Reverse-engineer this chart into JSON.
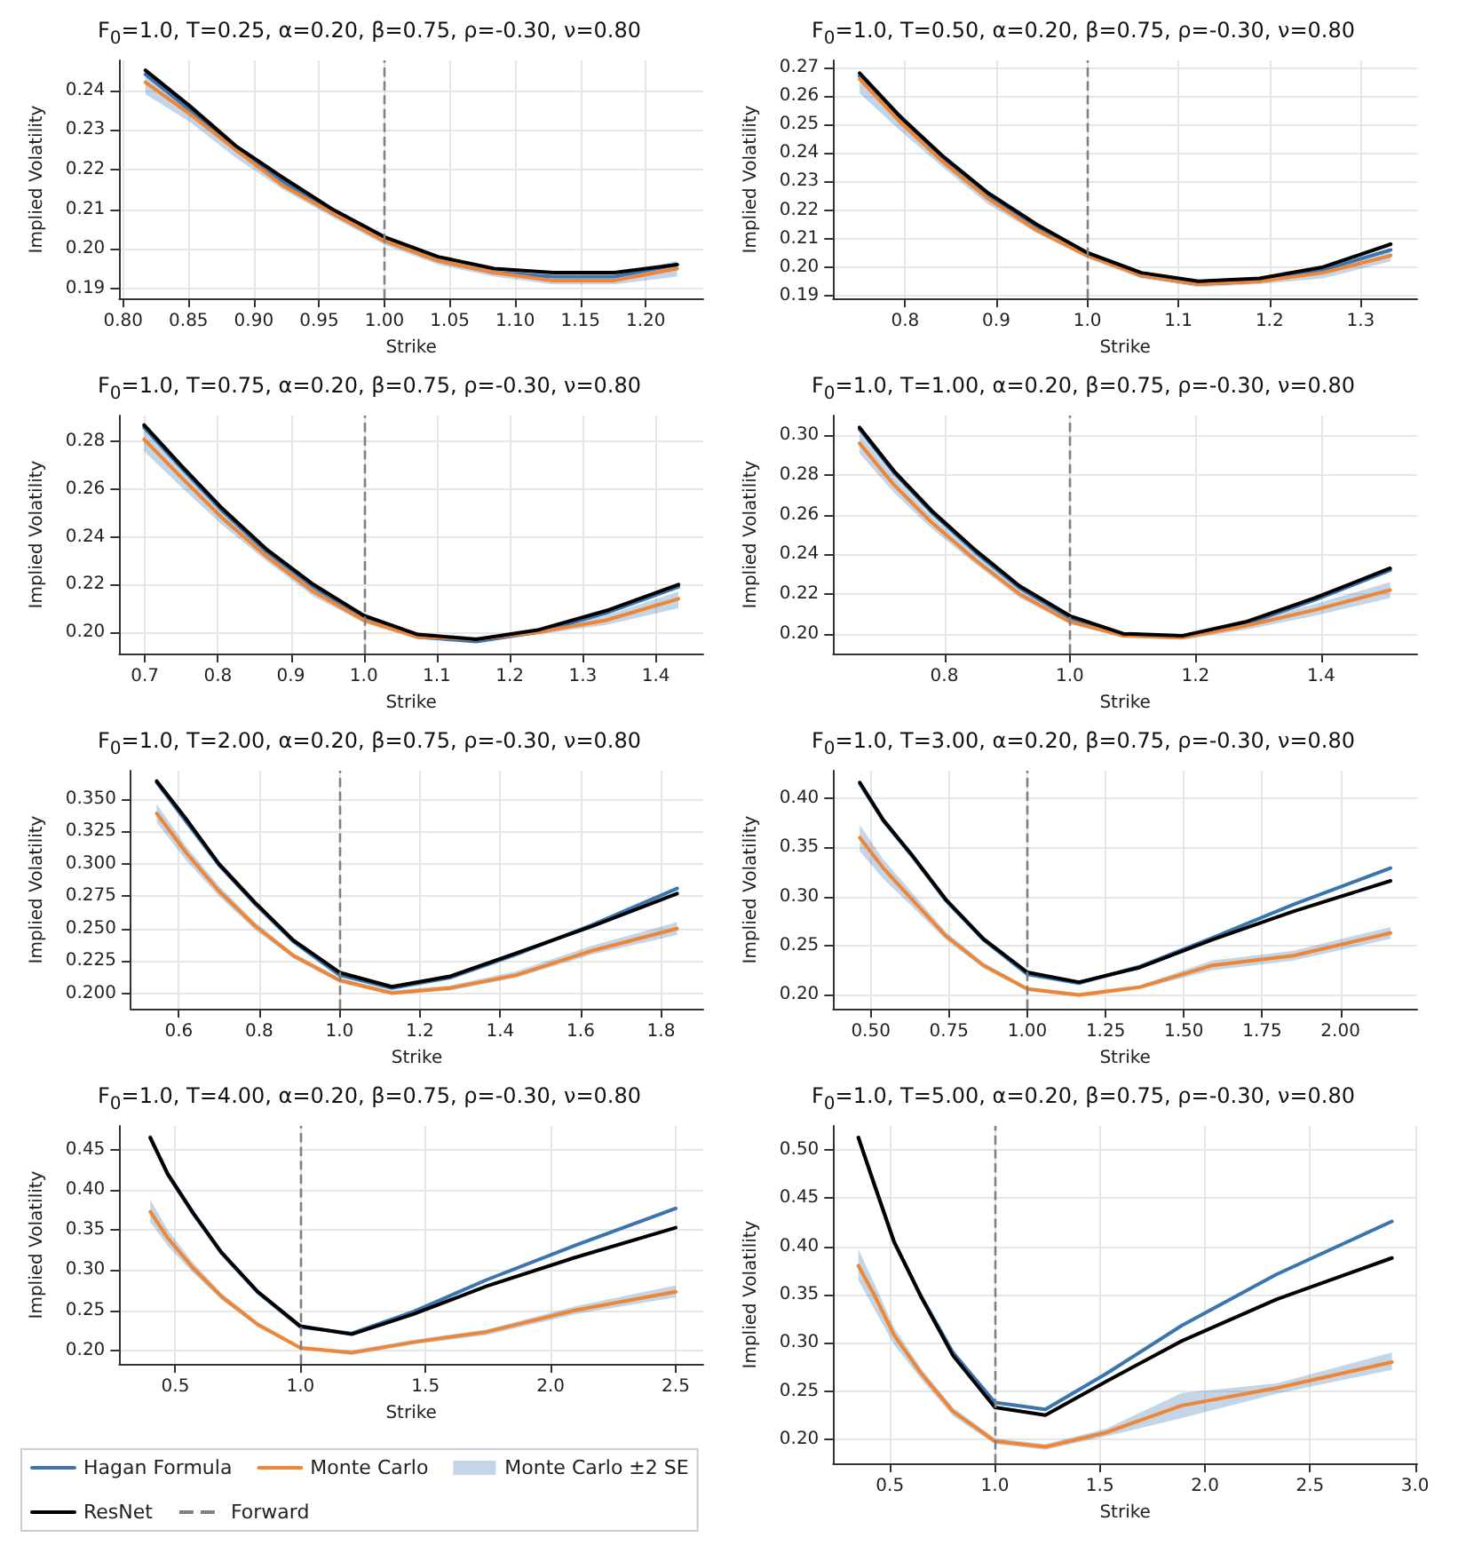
{
  "chart_data": [
    {
      "type": "line",
      "title": "F$_{0}$=1.0, T=0.25, α=0.20, β=0.75, ρ=-0.30, ν=0.80",
      "xlabel": "Strike",
      "ylabel": "Implied Volatility",
      "grid": true,
      "legend": false,
      "xlim": [
        0.797,
        1.244
      ],
      "ylim": [
        0.1875,
        0.2475
      ],
      "xticks": [
        {
          "value": 0.8,
          "label": "0.80"
        },
        0.85,
        {
          "value": 0.9,
          "label": "0.90"
        },
        0.95,
        {
          "value": 1,
          "label": "1.00"
        },
        1.05,
        {
          "value": 1.1,
          "label": "1.10"
        },
        1.15,
        {
          "value": 1.2,
          "label": "1.20"
        }
      ],
      "yticks": [
        0.19,
        {
          "value": 0.2,
          "label": "0.20"
        },
        0.21,
        0.22,
        0.23,
        0.24
      ],
      "x": [
        0.817,
        0.851,
        0.886,
        0.922,
        0.96,
        1.0,
        1.041,
        1.084,
        1.129,
        1.176,
        1.224
      ],
      "series": [
        {
          "color": "#3b75af",
          "values": [
            0.244,
            0.235,
            0.225,
            0.217,
            0.209,
            0.202,
            0.197,
            0.194,
            0.193,
            0.193,
            0.196
          ]
        },
        {
          "color": "#ef8636",
          "values": [
            0.242,
            0.234,
            0.225,
            0.216,
            0.209,
            0.202,
            0.197,
            0.194,
            0.192,
            0.192,
            0.195
          ],
          "upper": [
            0.244,
            0.235,
            0.226,
            0.217,
            0.21,
            0.203,
            0.198,
            0.195,
            0.193,
            0.193,
            0.197
          ],
          "lower": [
            0.239,
            0.232,
            0.223,
            0.215,
            0.208,
            0.201,
            0.196,
            0.193,
            0.191,
            0.191,
            0.193
          ]
        },
        {
          "color": "#000000",
          "values": [
            0.245,
            0.236,
            0.226,
            0.218,
            0.21,
            0.203,
            0.198,
            0.195,
            0.194,
            0.194,
            0.196
          ]
        }
      ],
      "ref_lines": [
        {
          "axis": "x",
          "value": 1.0,
          "color": "#808080",
          "line_style": "dashed"
        }
      ]
    },
    {
      "type": "line",
      "title": "F$_{0}$=1.0, T=0.50, α=0.20, β=0.75, ρ=-0.30, ν=0.80",
      "xlabel": "Strike",
      "ylabel": "Implied Volatility",
      "grid": true,
      "legend": false,
      "xlim": [
        0.721,
        1.362
      ],
      "ylim": [
        0.189,
        0.2725
      ],
      "xticks": [
        0.8,
        0.9,
        {
          "value": 1,
          "label": "1.0"
        },
        1.1,
        1.2,
        1.3
      ],
      "yticks": [
        0.19,
        {
          "value": 0.2,
          "label": "0.20"
        },
        0.21,
        0.22,
        0.23,
        0.24,
        0.25,
        0.26,
        0.27
      ],
      "x": [
        0.75,
        0.794,
        0.841,
        0.891,
        0.944,
        1.0,
        1.059,
        1.122,
        1.189,
        1.259,
        1.333
      ],
      "series": [
        {
          "color": "#3b75af",
          "values": [
            0.267,
            0.252,
            0.238,
            0.225,
            0.214,
            0.205,
            0.197,
            0.194,
            0.195,
            0.199,
            0.206
          ]
        },
        {
          "color": "#ef8636",
          "values": [
            0.266,
            0.251,
            0.237,
            0.224,
            0.213,
            0.204,
            0.197,
            0.194,
            0.195,
            0.198,
            0.204
          ],
          "upper": [
            0.269,
            0.254,
            0.239,
            0.226,
            0.215,
            0.205,
            0.198,
            0.195,
            0.196,
            0.2,
            0.206
          ],
          "lower": [
            0.261,
            0.248,
            0.235,
            0.222,
            0.212,
            0.203,
            0.196,
            0.193,
            0.194,
            0.196,
            0.202
          ]
        },
        {
          "color": "#000000",
          "values": [
            0.268,
            0.253,
            0.239,
            0.226,
            0.215,
            0.205,
            0.198,
            0.195,
            0.196,
            0.2,
            0.208
          ]
        }
      ],
      "ref_lines": [
        {
          "axis": "x",
          "value": 1.0,
          "color": "#808080",
          "line_style": "dashed"
        }
      ]
    },
    {
      "type": "line",
      "title": "F$_{0}$=1.0, T=0.75, α=0.20, β=0.75, ρ=-0.30, ν=0.80",
      "xlabel": "Strike",
      "ylabel": "Implied Volatility",
      "grid": true,
      "legend": false,
      "xlim": [
        0.665,
        1.465
      ],
      "ylim": [
        0.191,
        0.291
      ],
      "xticks": [
        0.7,
        0.8,
        0.9,
        {
          "value": 1,
          "label": "1.0"
        },
        1.1,
        1.2,
        1.3,
        1.4
      ],
      "yticks": [
        {
          "value": 0.2,
          "label": "0.20"
        },
        0.22,
        0.24,
        0.26,
        0.28
      ],
      "x": [
        0.699,
        0.75,
        0.806,
        0.866,
        0.931,
        1.0,
        1.074,
        1.154,
        1.24,
        1.332,
        1.431
      ],
      "series": [
        {
          "color": "#3b75af",
          "values": [
            0.286,
            0.269,
            0.251,
            0.234,
            0.219,
            0.206,
            0.198,
            0.196,
            0.2,
            0.208,
            0.219
          ]
        },
        {
          "color": "#ef8636",
          "values": [
            0.281,
            0.265,
            0.248,
            0.232,
            0.217,
            0.205,
            0.198,
            0.197,
            0.2,
            0.205,
            0.214
          ],
          "upper": [
            0.285,
            0.268,
            0.251,
            0.234,
            0.219,
            0.207,
            0.199,
            0.198,
            0.201,
            0.207,
            0.217
          ],
          "lower": [
            0.276,
            0.261,
            0.245,
            0.23,
            0.215,
            0.204,
            0.197,
            0.196,
            0.199,
            0.203,
            0.21
          ]
        },
        {
          "color": "#000000",
          "values": [
            0.287,
            0.27,
            0.252,
            0.235,
            0.22,
            0.207,
            0.199,
            0.197,
            0.201,
            0.209,
            0.22
          ]
        }
      ],
      "ref_lines": [
        {
          "axis": "x",
          "value": 1.0,
          "color": "#808080",
          "line_style": "dashed"
        }
      ]
    },
    {
      "type": "line",
      "title": "F$_{0}$=1.0, T=1.00, α=0.20, β=0.75, ρ=-0.30, ν=0.80",
      "xlabel": "Strike",
      "ylabel": "Implied Volatility",
      "grid": true,
      "legend": false,
      "xlim": [
        0.623,
        1.553
      ],
      "ylim": [
        0.19,
        0.31
      ],
      "xticks": [
        0.8,
        {
          "value": 1,
          "label": "1.0"
        },
        1.2,
        1.4
      ],
      "yticks": [
        {
          "value": 0.2,
          "label": "0.20"
        },
        0.22,
        0.24,
        0.26,
        0.28,
        {
          "value": 0.3,
          "label": "0.30"
        }
      ],
      "x": [
        0.665,
        0.72,
        0.78,
        0.85,
        0.92,
        1.0,
        1.085,
        1.18,
        1.28,
        1.39,
        1.51
      ],
      "series": [
        {
          "color": "#3b75af",
          "values": [
            0.303,
            0.281,
            0.261,
            0.241,
            0.223,
            0.208,
            0.199,
            0.199,
            0.205,
            0.217,
            0.232
          ]
        },
        {
          "color": "#ef8636",
          "values": [
            0.296,
            0.275,
            0.256,
            0.237,
            0.22,
            0.206,
            0.199,
            0.198,
            0.204,
            0.212,
            0.222
          ],
          "upper": [
            0.301,
            0.279,
            0.259,
            0.24,
            0.222,
            0.208,
            0.2,
            0.199,
            0.206,
            0.215,
            0.226
          ],
          "lower": [
            0.291,
            0.271,
            0.253,
            0.235,
            0.218,
            0.205,
            0.198,
            0.197,
            0.202,
            0.209,
            0.218
          ]
        },
        {
          "color": "#000000",
          "values": [
            0.304,
            0.282,
            0.262,
            0.242,
            0.224,
            0.209,
            0.2,
            0.199,
            0.206,
            0.218,
            0.233
          ]
        }
      ],
      "ref_lines": [
        {
          "axis": "x",
          "value": 1.0,
          "color": "#808080",
          "line_style": "dashed"
        }
      ]
    },
    {
      "type": "line",
      "title": "F$_{0}$=1.0, T=2.00, α=0.20, β=0.75, ρ=-0.30, ν=0.80",
      "xlabel": "Strike",
      "ylabel": "Implied Volatility",
      "grid": true,
      "legend": false,
      "xlim": [
        0.48,
        1.905
      ],
      "ylim": [
        0.188,
        0.372
      ],
      "xticks": [
        0.6,
        0.8,
        {
          "value": 1,
          "label": "1.0"
        },
        1.2,
        1.4,
        1.6,
        1.8
      ],
      "yticks": [
        {
          "value": 0.2,
          "label": "0.200"
        },
        0.225,
        {
          "value": 0.25,
          "label": "0.250"
        },
        0.275,
        {
          "value": 0.3,
          "label": "0.300"
        },
        0.325,
        {
          "value": 0.35,
          "label": "0.350"
        }
      ],
      "x": [
        0.545,
        0.62,
        0.7,
        0.79,
        0.885,
        1.0,
        1.13,
        1.275,
        1.44,
        1.63,
        1.84
      ],
      "series": [
        {
          "color": "#3b75af",
          "values": [
            0.363,
            0.332,
            0.299,
            0.269,
            0.24,
            0.214,
            0.204,
            0.212,
            0.23,
            0.253,
            0.281
          ]
        },
        {
          "color": "#ef8636",
          "values": [
            0.339,
            0.308,
            0.279,
            0.252,
            0.229,
            0.21,
            0.2,
            0.204,
            0.214,
            0.233,
            0.25
          ],
          "upper": [
            0.346,
            0.313,
            0.283,
            0.255,
            0.231,
            0.212,
            0.202,
            0.206,
            0.217,
            0.237,
            0.255
          ],
          "lower": [
            0.332,
            0.302,
            0.275,
            0.249,
            0.227,
            0.208,
            0.199,
            0.202,
            0.212,
            0.23,
            0.245
          ]
        },
        {
          "color": "#000000",
          "values": [
            0.364,
            0.334,
            0.3,
            0.27,
            0.241,
            0.216,
            0.205,
            0.213,
            0.231,
            0.252,
            0.277
          ]
        }
      ],
      "ref_lines": [
        {
          "axis": "x",
          "value": 1.0,
          "color": "#808080",
          "line_style": "dashed"
        }
      ]
    },
    {
      "type": "line",
      "title": "F$_{0}$=1.0, T=3.00, α=0.20, β=0.75, ρ=-0.30, ν=0.80",
      "xlabel": "Strike",
      "ylabel": "Implied Volatility",
      "grid": true,
      "legend": false,
      "xlim": [
        0.38,
        2.245
      ],
      "ylim": [
        0.186,
        0.428
      ],
      "xticks": [
        {
          "value": 0.5,
          "label": "0.50"
        },
        0.75,
        {
          "value": 1,
          "label": "1.00"
        },
        1.25,
        {
          "value": 1.5,
          "label": "1.50"
        },
        1.75,
        {
          "value": 2,
          "label": "2.00"
        }
      ],
      "yticks": [
        {
          "value": 0.2,
          "label": "0.20"
        },
        0.25,
        {
          "value": 0.3,
          "label": "0.30"
        },
        0.35,
        {
          "value": 0.4,
          "label": "0.40"
        }
      ],
      "x": [
        0.465,
        0.54,
        0.635,
        0.74,
        0.86,
        1.0,
        1.165,
        1.36,
        1.59,
        1.85,
        2.16
      ],
      "series": [
        {
          "color": "#3b75af",
          "values": [
            0.415,
            0.377,
            0.34,
            0.296,
            0.256,
            0.221,
            0.212,
            0.229,
            0.258,
            0.292,
            0.329
          ]
        },
        {
          "color": "#ef8636",
          "values": [
            0.36,
            0.329,
            0.296,
            0.26,
            0.23,
            0.206,
            0.2,
            0.208,
            0.23,
            0.24,
            0.263
          ],
          "upper": [
            0.373,
            0.338,
            0.303,
            0.264,
            0.233,
            0.208,
            0.202,
            0.21,
            0.235,
            0.245,
            0.269
          ],
          "lower": [
            0.346,
            0.318,
            0.289,
            0.256,
            0.227,
            0.204,
            0.198,
            0.206,
            0.225,
            0.235,
            0.257
          ]
        },
        {
          "color": "#000000",
          "values": [
            0.416,
            0.378,
            0.341,
            0.297,
            0.257,
            0.223,
            0.213,
            0.228,
            0.256,
            0.285,
            0.316
          ]
        }
      ],
      "ref_lines": [
        {
          "axis": "x",
          "value": 1.0,
          "color": "#808080",
          "line_style": "dashed"
        }
      ]
    },
    {
      "type": "line",
      "title": "F$_{0}$=1.0, T=4.00, α=0.20, β=0.75, ρ=-0.30, ν=0.80",
      "xlabel": "Strike",
      "ylabel": "Implied Volatility",
      "grid": true,
      "legend": "bottom left",
      "xlim": [
        0.276,
        2.61
      ],
      "ylim": [
        0.183,
        0.48
      ],
      "annotations": [
        "Monte Carlo ±2 SE"
      ],
      "xticks": [
        0.5,
        {
          "value": 1,
          "label": "1.0"
        },
        1.5,
        {
          "value": 2,
          "label": "2.0"
        },
        2.5
      ],
      "yticks": [
        {
          "value": 0.2,
          "label": "0.20"
        },
        0.25,
        {
          "value": 0.3,
          "label": "0.30"
        },
        0.35,
        {
          "value": 0.4,
          "label": "0.40"
        },
        0.45
      ],
      "x": [
        0.4,
        0.47,
        0.57,
        0.685,
        0.83,
        1.0,
        1.205,
        1.45,
        1.745,
        2.1,
        2.5
      ],
      "series": [
        {
          "name": "Hagan Formula",
          "color": "#3b75af",
          "values": [
            0.466,
            0.419,
            0.371,
            0.321,
            0.272,
            0.229,
            0.221,
            0.248,
            0.288,
            0.331,
            0.377
          ]
        },
        {
          "name": "Monte Carlo",
          "color": "#ef8636",
          "values": [
            0.373,
            0.34,
            0.303,
            0.267,
            0.232,
            0.203,
            0.197,
            0.21,
            0.223,
            0.25,
            0.273
          ],
          "upper": [
            0.388,
            0.35,
            0.31,
            0.271,
            0.235,
            0.205,
            0.2,
            0.213,
            0.226,
            0.255,
            0.281
          ],
          "lower": [
            0.36,
            0.33,
            0.297,
            0.263,
            0.229,
            0.201,
            0.194,
            0.207,
            0.219,
            0.245,
            0.266
          ]
        },
        {
          "name": "ResNet",
          "color": "#000000",
          "values": [
            0.465,
            0.42,
            0.372,
            0.322,
            0.273,
            0.23,
            0.22,
            0.245,
            0.28,
            0.316,
            0.353
          ]
        }
      ],
      "ref_lines": [
        {
          "axis": "x",
          "value": 1.0,
          "label": "Forward",
          "color": "#808080",
          "line_style": "dashed"
        }
      ]
    },
    {
      "type": "line",
      "title": "F$_{0}$=1.0, T=5.00, α=0.20, β=0.75, ρ=-0.30, ν=0.80",
      "xlabel": "Strike",
      "ylabel": "Implied Volatility",
      "grid": true,
      "legend": false,
      "xlim": [
        0.23,
        3.01
      ],
      "ylim": [
        0.175,
        0.525
      ],
      "xticks": [
        0.5,
        {
          "value": 1,
          "label": "1.0"
        },
        1.5,
        {
          "value": 2,
          "label": "2.0"
        },
        2.5,
        {
          "value": 3,
          "label": "3.0"
        }
      ],
      "yticks": [
        {
          "value": 0.2,
          "label": "0.20"
        },
        0.25,
        {
          "value": 0.3,
          "label": "0.30"
        },
        0.35,
        {
          "value": 0.4,
          "label": "0.40"
        },
        0.45,
        {
          "value": 0.5,
          "label": "0.50"
        }
      ],
      "x": [
        0.35,
        0.425,
        0.52,
        0.65,
        0.8,
        1.0,
        1.24,
        1.53,
        1.89,
        2.34,
        2.89
      ],
      "series": [
        {
          "color": "#3b75af",
          "values": [
            0.513,
            0.464,
            0.404,
            0.348,
            0.29,
            0.238,
            0.231,
            0.268,
            0.318,
            0.371,
            0.426
          ]
        },
        {
          "color": "#ef8636",
          "values": [
            0.38,
            0.35,
            0.308,
            0.268,
            0.229,
            0.198,
            0.192,
            0.207,
            0.235,
            0.253,
            0.28
          ],
          "upper": [
            0.397,
            0.362,
            0.316,
            0.273,
            0.233,
            0.201,
            0.195,
            0.211,
            0.248,
            0.258,
            0.29
          ],
          "lower": [
            0.365,
            0.335,
            0.298,
            0.262,
            0.224,
            0.195,
            0.189,
            0.203,
            0.222,
            0.247,
            0.272
          ]
        },
        {
          "color": "#000000",
          "values": [
            0.513,
            0.465,
            0.405,
            0.347,
            0.287,
            0.233,
            0.225,
            0.26,
            0.302,
            0.345,
            0.388
          ]
        }
      ],
      "ref_lines": [
        {
          "axis": "x",
          "value": 1.0,
          "color": "#808080",
          "line_style": "dashed"
        }
      ]
    }
  ]
}
